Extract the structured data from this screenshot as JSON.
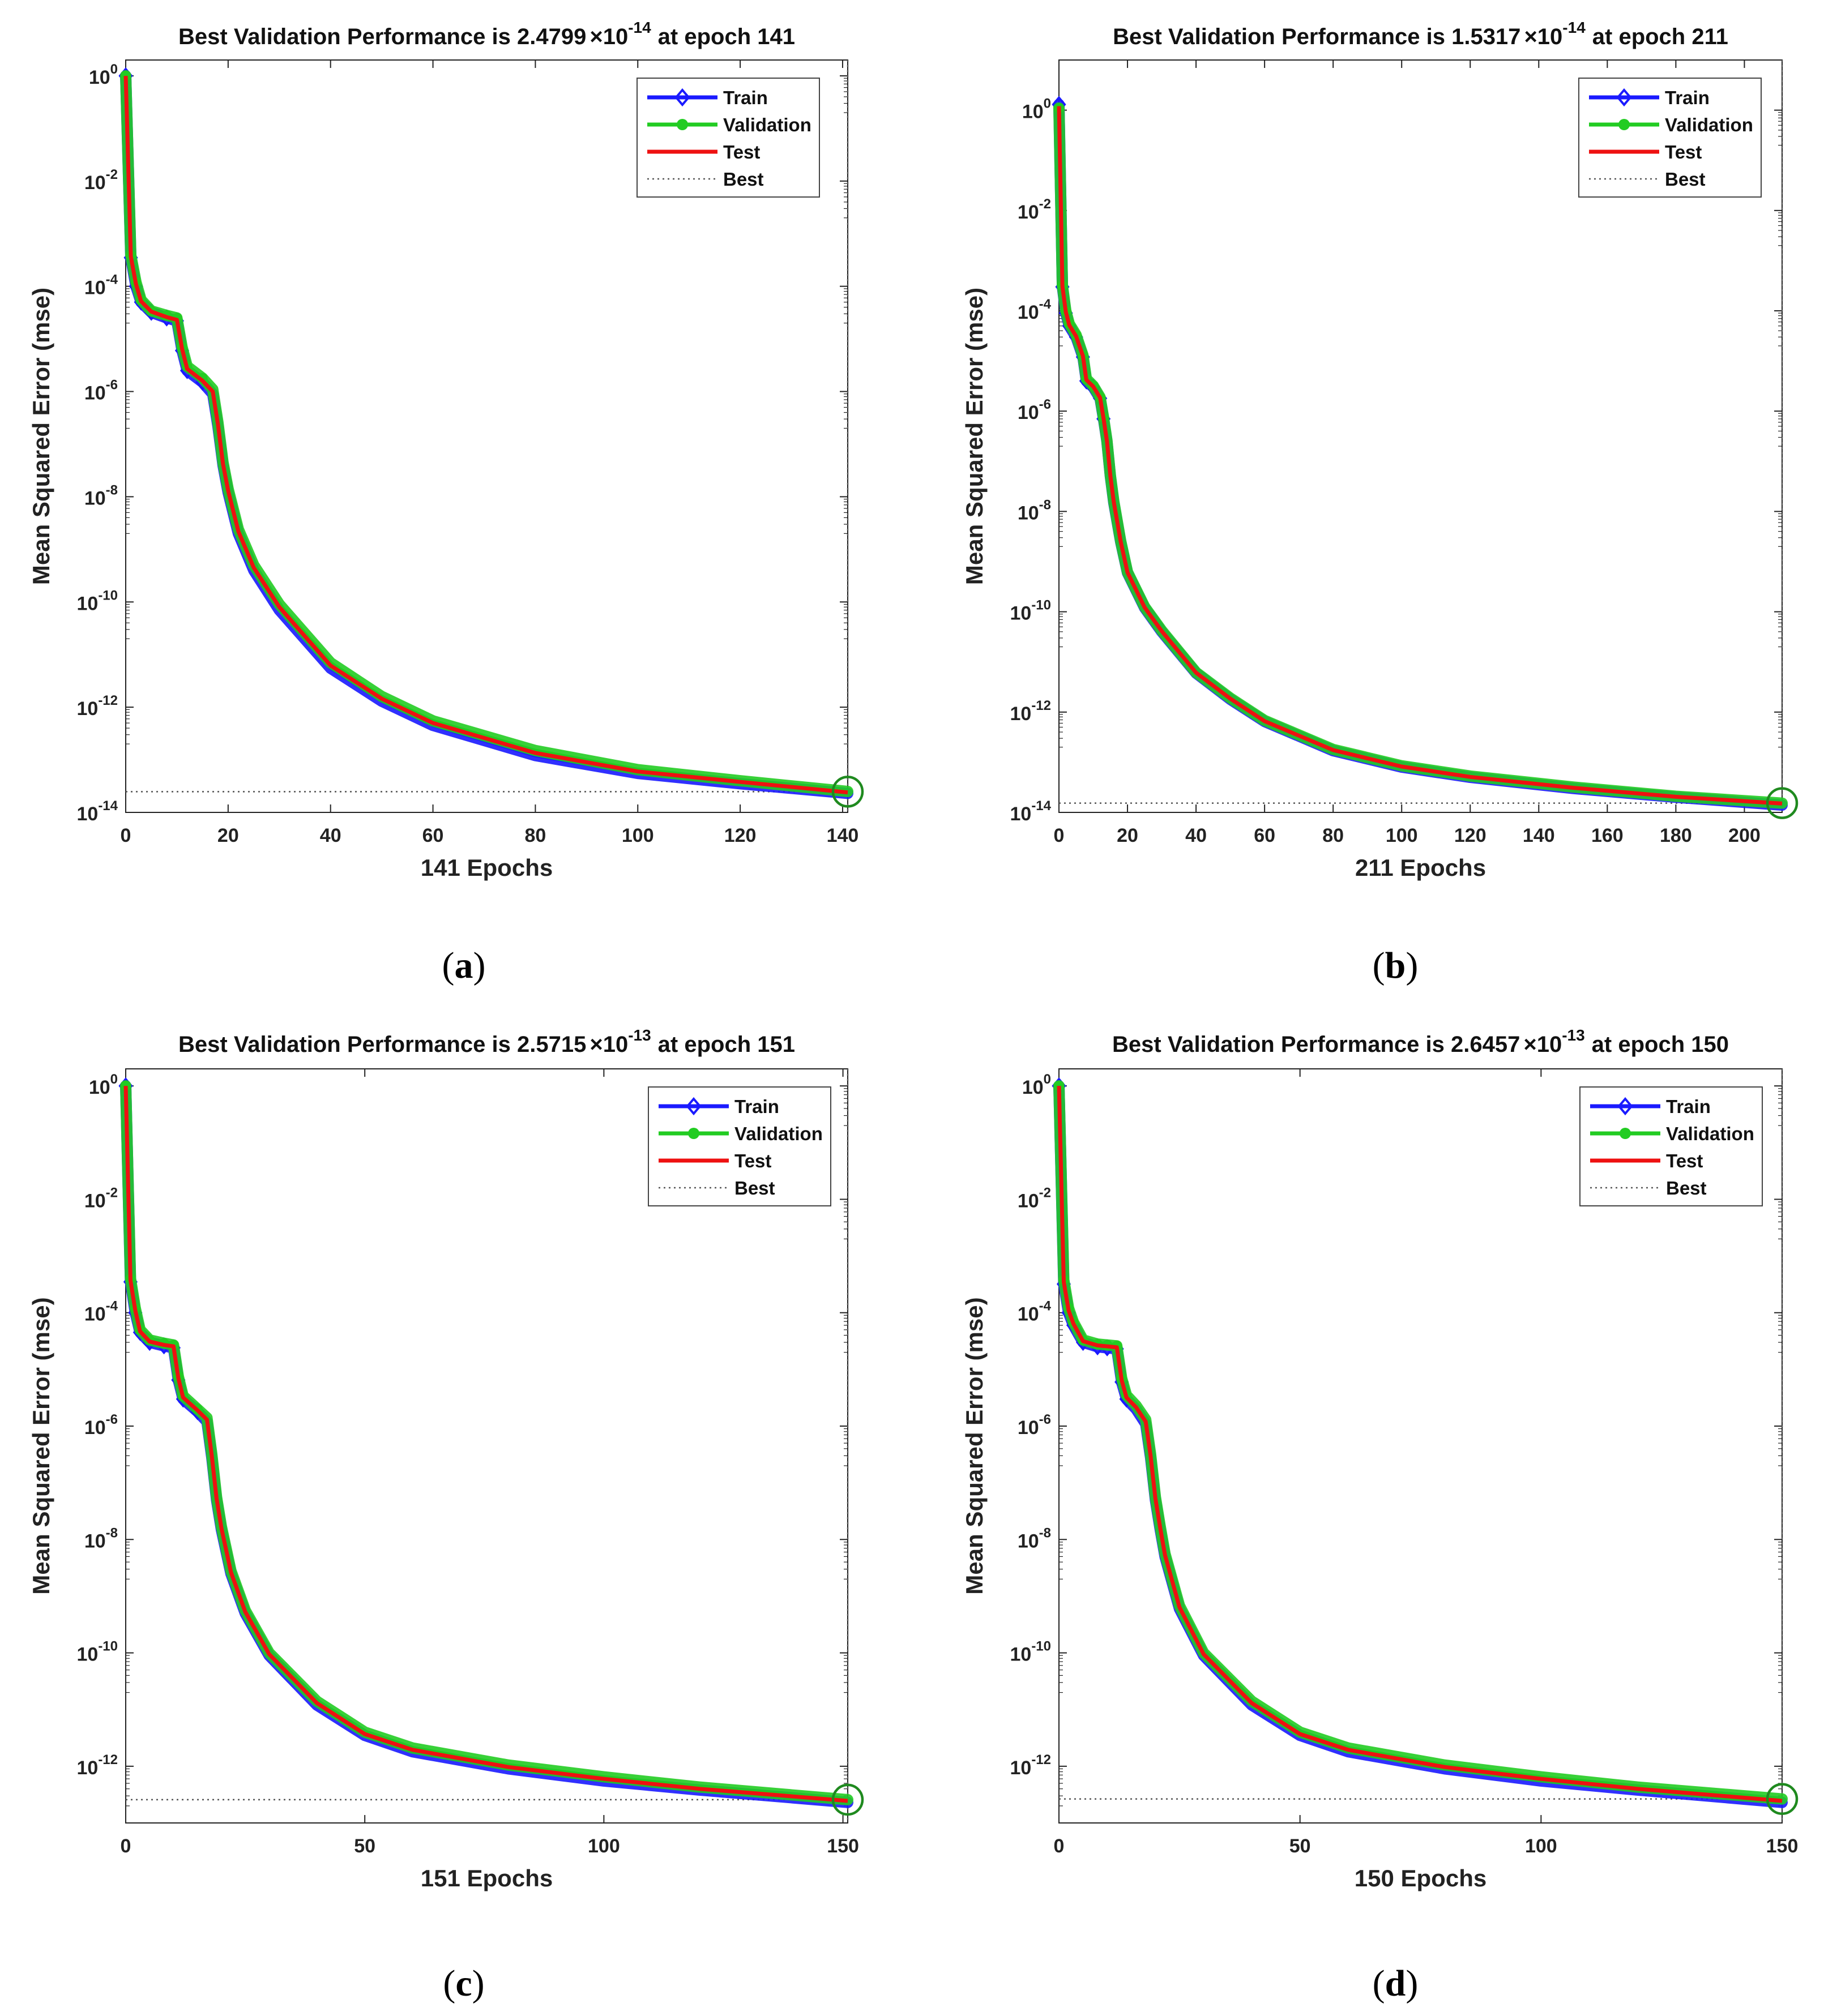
{
  "legend_entries": [
    "Train",
    "Validation",
    "Test",
    "Best"
  ],
  "colors": {
    "train": "#1a1aff",
    "validation": "#22cc22",
    "test": "#ee1111",
    "best": "#555555",
    "best_circle": "#1f8a1f"
  },
  "chart_data": [
    {
      "panel": "a",
      "type": "line",
      "title": {
        "prefix": "Best Validation Performance is 2.4799",
        "times": "×10",
        "exponent": "-14",
        "suffix": "at epoch 141"
      },
      "xlabel": "141 Epochs",
      "ylabel": "Mean Squared Error  (mse)",
      "y_scale": "log",
      "xlim": [
        0,
        141
      ],
      "ylim": [
        1e-14,
        2.0
      ],
      "xticks": [
        0,
        20,
        40,
        60,
        80,
        100,
        120,
        140
      ],
      "yticks_exponent": [
        0,
        -2,
        -4,
        -6,
        -8,
        -10,
        -12,
        -14
      ],
      "best": {
        "epoch": 141,
        "value": 2.4799e-14
      },
      "series": [
        {
          "name": "Train",
          "x": [
            0,
            1,
            2,
            3,
            5,
            8,
            10,
            11,
            12,
            15,
            17,
            18,
            19,
            20,
            22,
            25,
            30,
            40,
            50,
            60,
            80,
            100,
            120,
            141
          ],
          "y": [
            1,
            0.00035,
            0.0001,
            5e-05,
            3.2e-05,
            2.5e-05,
            2.2e-05,
            6e-06,
            2.5e-06,
            1.5e-06,
            9e-07,
            2.2e-07,
            4e-08,
            1.2e-08,
            2e-09,
            4e-10,
            7e-11,
            5.5e-12,
            1.3e-12,
            4.5e-13,
            1.2e-13,
            5.5e-14,
            3.5e-14,
            2.3e-14
          ]
        },
        {
          "name": "Validation",
          "x": [
            0,
            1,
            2,
            3,
            5,
            8,
            10,
            11,
            12,
            15,
            17,
            18,
            19,
            20,
            22,
            25,
            30,
            40,
            50,
            60,
            80,
            100,
            120,
            141
          ],
          "y": [
            1,
            0.00039,
            0.00012,
            5.5e-05,
            3.4e-05,
            2.8e-05,
            2.5e-05,
            7e-06,
            3e-06,
            1.8e-06,
            1.1e-06,
            2.6e-07,
            4.5e-08,
            1.4e-08,
            2.4e-09,
            5e-10,
            9e-11,
            7e-12,
            1.6e-12,
            5.5e-13,
            1.5e-13,
            6.5e-14,
            4e-14,
            2.5e-14
          ]
        },
        {
          "name": "Test",
          "x": [
            0,
            1,
            2,
            3,
            5,
            8,
            10,
            11,
            12,
            15,
            17,
            18,
            19,
            20,
            22,
            25,
            30,
            40,
            50,
            60,
            80,
            100,
            120,
            141
          ],
          "y": [
            1,
            0.00037,
            0.00011,
            5.2e-05,
            3.3e-05,
            2.6e-05,
            2.3e-05,
            6.5e-06,
            2.7e-06,
            1.6e-06,
            1e-06,
            2.4e-07,
            4.2e-08,
            1.3e-08,
            2.2e-09,
            4.5e-10,
            8e-11,
            6.2e-12,
            1.45e-12,
            5e-13,
            1.35e-13,
            6e-14,
            3.8e-14,
            2.4e-14
          ]
        }
      ]
    },
    {
      "panel": "b",
      "type": "line",
      "title": {
        "prefix": "Best Validation Performance is 1.5317",
        "times": "×10",
        "exponent": "-14",
        "suffix": "at epoch 211"
      },
      "xlabel": "211 Epochs",
      "ylabel": "Mean Squared Error  (mse)",
      "y_scale": "log",
      "xlim": [
        0,
        211
      ],
      "ylim": [
        1e-14,
        10.0
      ],
      "xticks": [
        0,
        20,
        40,
        60,
        80,
        100,
        120,
        140,
        160,
        180,
        200
      ],
      "yticks_exponent": [
        0,
        -2,
        -4,
        -6,
        -8,
        -10,
        -12,
        -14
      ],
      "best": {
        "epoch": 211,
        "value": 1.5317e-14
      },
      "series": [
        {
          "name": "Train",
          "x": [
            0,
            1,
            2,
            3,
            5,
            7,
            8,
            10,
            12,
            13,
            14,
            15,
            16,
            18,
            20,
            25,
            30,
            40,
            50,
            60,
            80,
            100,
            120,
            150,
            180,
            211
          ],
          "y": [
            1.3,
            0.0003,
            9e-05,
            5e-05,
            3e-05,
            1.2e-05,
            4e-06,
            3e-06,
            1.8e-06,
            7e-07,
            2.5e-07,
            5e-08,
            1.5e-08,
            2.5e-09,
            6e-10,
            1.2e-10,
            4e-11,
            6e-12,
            1.8e-12,
            6.5e-13,
            1.7e-13,
            8e-14,
            5e-14,
            3e-14,
            2e-14,
            1.4e-14
          ]
        },
        {
          "name": "Validation",
          "x": [
            0,
            1,
            2,
            3,
            5,
            7,
            8,
            10,
            12,
            13,
            14,
            15,
            16,
            18,
            20,
            25,
            30,
            40,
            50,
            60,
            80,
            100,
            120,
            150,
            180,
            211
          ],
          "y": [
            1.1,
            0.00032,
            0.0001,
            5.5e-05,
            3.3e-05,
            1.3e-05,
            4.4e-06,
            3.2e-06,
            1.9e-06,
            7.5e-07,
            2.6e-07,
            5.2e-08,
            1.6e-08,
            2.6e-09,
            6.2e-10,
            1.25e-10,
            4.2e-11,
            6.2e-12,
            1.9e-12,
            6.8e-13,
            1.8e-13,
            8.5e-14,
            5.3e-14,
            3.2e-14,
            2.1e-14,
            1.53e-14
          ]
        },
        {
          "name": "Test",
          "x": [
            0,
            1,
            2,
            3,
            5,
            7,
            8,
            10,
            12,
            13,
            14,
            15,
            16,
            18,
            20,
            25,
            30,
            40,
            50,
            60,
            80,
            100,
            120,
            150,
            180,
            211
          ],
          "y": [
            1.2,
            0.00031,
            9.5e-05,
            5.2e-05,
            3.1e-05,
            1.25e-05,
            4.2e-06,
            3.1e-06,
            1.85e-06,
            7.2e-07,
            2.55e-07,
            5.1e-08,
            1.55e-08,
            2.55e-09,
            6.1e-10,
            1.22e-10,
            4.1e-11,
            6.1e-12,
            1.85e-12,
            6.6e-13,
            1.75e-13,
            8.2e-14,
            5.1e-14,
            3.1e-14,
            2.05e-14,
            1.5e-14
          ]
        }
      ]
    },
    {
      "panel": "c",
      "type": "line",
      "title": {
        "prefix": "Best Validation Performance is 2.5715",
        "times": "×10",
        "exponent": "-13",
        "suffix": "at epoch 151"
      },
      "xlabel": "151 Epochs",
      "ylabel": "Mean Squared Error  (mse)",
      "y_scale": "log",
      "xlim": [
        0,
        151
      ],
      "ylim": [
        1e-13,
        2.0
      ],
      "xticks": [
        0,
        50,
        100,
        150
      ],
      "yticks_exponent": [
        0,
        -2,
        -4,
        -6,
        -8,
        -10,
        -12
      ],
      "best": {
        "epoch": 151,
        "value": 2.5715e-13
      },
      "series": [
        {
          "name": "Train",
          "x": [
            0,
            1,
            2,
            3,
            5,
            8,
            10,
            11,
            12,
            15,
            17,
            18,
            19,
            20,
            22,
            25,
            30,
            40,
            50,
            60,
            80,
            100,
            120,
            151
          ],
          "y": [
            1,
            0.00035,
            0.0001,
            4.5e-05,
            3e-05,
            2.6e-05,
            2.4e-05,
            6.5e-06,
            3e-06,
            1.8e-06,
            1.2e-06,
            2.8e-07,
            5e-08,
            1.5e-08,
            2.5e-09,
            5e-10,
            9e-11,
            1.2e-11,
            3.5e-12,
            1.8e-12,
            9e-13,
            5.5e-13,
            3.8e-13,
            2.3e-13
          ]
        },
        {
          "name": "Validation",
          "x": [
            0,
            1,
            2,
            3,
            5,
            8,
            10,
            11,
            12,
            15,
            17,
            18,
            19,
            20,
            22,
            25,
            30,
            40,
            50,
            60,
            80,
            100,
            120,
            151
          ],
          "y": [
            1,
            0.0004,
            0.00012,
            5e-05,
            3.3e-05,
            2.9e-05,
            2.7e-05,
            7.5e-06,
            3.4e-06,
            2e-06,
            1.4e-06,
            3.2e-07,
            5.6e-08,
            1.7e-08,
            2.8e-09,
            5.6e-10,
            1e-10,
            1.4e-11,
            4e-12,
            2.1e-12,
            1.05e-12,
            6.5e-13,
            4.3e-13,
            2.57e-13
          ]
        },
        {
          "name": "Test",
          "x": [
            0,
            1,
            2,
            3,
            5,
            8,
            10,
            11,
            12,
            15,
            17,
            18,
            19,
            20,
            22,
            25,
            30,
            40,
            50,
            60,
            80,
            100,
            120,
            151
          ],
          "y": [
            1,
            0.00037,
            0.00011,
            4.7e-05,
            3.1e-05,
            2.7e-05,
            2.55e-05,
            7e-06,
            3.2e-06,
            1.9e-06,
            1.3e-06,
            3e-07,
            5.3e-08,
            1.6e-08,
            2.65e-09,
            5.3e-10,
            9.5e-11,
            1.3e-11,
            3.7e-12,
            1.95e-12,
            9.7e-13,
            6e-13,
            4e-13,
            2.45e-13
          ]
        }
      ]
    },
    {
      "panel": "d",
      "type": "line",
      "title": {
        "prefix": "Best Validation Performance is 2.6457",
        "times": "×10",
        "exponent": "-13",
        "suffix": "at epoch 150"
      },
      "xlabel": "150 Epochs",
      "ylabel": "Mean Squared Error  (mse)",
      "y_scale": "log",
      "xlim": [
        0,
        150
      ],
      "ylim": [
        1e-13,
        2.0
      ],
      "xticks": [
        0,
        50,
        100,
        150
      ],
      "yticks_exponent": [
        0,
        -2,
        -4,
        -6,
        -8,
        -10,
        -12
      ],
      "best": {
        "epoch": 150,
        "value": 2.6457e-13
      },
      "series": [
        {
          "name": "Train",
          "x": [
            0,
            1,
            2,
            3,
            5,
            8,
            10,
            12,
            13,
            14,
            16,
            18,
            19,
            20,
            21,
            22,
            25,
            30,
            40,
            50,
            60,
            80,
            100,
            120,
            150
          ],
          "y": [
            1,
            0.00032,
            0.0001,
            6e-05,
            3e-05,
            2.5e-05,
            2.4e-05,
            2.3e-05,
            6e-06,
            3e-06,
            2e-06,
            1.1e-06,
            2.8e-07,
            5e-08,
            1.5e-08,
            5e-09,
            6e-10,
            9e-11,
            1.2e-11,
            3.5e-12,
            1.8e-12,
            9e-13,
            5.5e-13,
            3.8e-13,
            2.3e-13
          ]
        },
        {
          "name": "Validation",
          "x": [
            0,
            1,
            2,
            3,
            5,
            8,
            10,
            12,
            13,
            14,
            16,
            18,
            19,
            20,
            21,
            22,
            25,
            30,
            40,
            50,
            60,
            80,
            100,
            120,
            150
          ],
          "y": [
            1,
            0.00038,
            0.00012,
            6.8e-05,
            3.3e-05,
            2.8e-05,
            2.7e-05,
            2.6e-05,
            7e-06,
            3.5e-06,
            2.3e-06,
            1.3e-06,
            3.2e-07,
            5.6e-08,
            1.7e-08,
            5.6e-09,
            6.8e-10,
            1e-10,
            1.4e-11,
            4e-12,
            2.1e-12,
            1.05e-12,
            6.5e-13,
            4.3e-13,
            2.65e-13
          ]
        },
        {
          "name": "Test",
          "x": [
            0,
            1,
            2,
            3,
            5,
            8,
            10,
            12,
            13,
            14,
            16,
            18,
            19,
            20,
            21,
            22,
            25,
            30,
            40,
            50,
            60,
            80,
            100,
            120,
            150
          ],
          "y": [
            1,
            0.00035,
            0.00011,
            6.4e-05,
            3.15e-05,
            2.65e-05,
            2.55e-05,
            2.45e-05,
            6.5e-06,
            3.2e-06,
            2.15e-06,
            1.2e-06,
            3e-07,
            5.3e-08,
            1.6e-08,
            5.3e-09,
            6.4e-10,
            9.5e-11,
            1.3e-11,
            3.7e-12,
            1.95e-12,
            9.7e-13,
            6e-13,
            4e-13,
            2.45e-13
          ]
        }
      ]
    }
  ],
  "panel_labels": [
    "a",
    "b",
    "c",
    "d"
  ]
}
